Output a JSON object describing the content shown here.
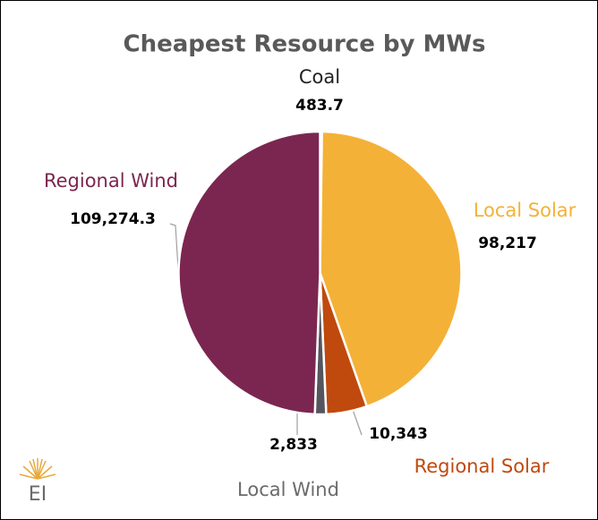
{
  "chart_data": {
    "type": "pie",
    "title": "Cheapest Resource by MWs",
    "categories": [
      "Coal",
      "Local Solar",
      "Regional Solar",
      "Local Wind",
      "Regional Wind"
    ],
    "values": [
      483.7,
      98217,
      10343,
      2833,
      109274.3
    ],
    "value_labels": [
      "483.7",
      "98,217",
      "10,343",
      "2,833",
      "109,274.3"
    ],
    "colors": [
      "#3a3a3a",
      "#f4b137",
      "#c0490e",
      "#55555d",
      "#7b2650"
    ],
    "label_colors": [
      "#222222",
      "#f4b137",
      "#c0490e",
      "#6b6b6b",
      "#7b2650"
    ]
  },
  "logo": {
    "text": "EI"
  }
}
